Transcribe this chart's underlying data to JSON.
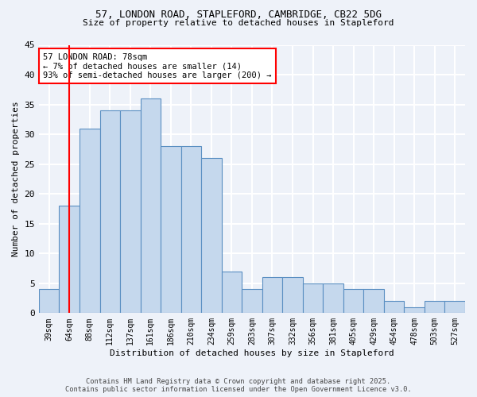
{
  "title_line1": "57, LONDON ROAD, STAPLEFORD, CAMBRIDGE, CB22 5DG",
  "title_line2": "Size of property relative to detached houses in Stapleford",
  "xlabel": "Distribution of detached houses by size in Stapleford",
  "ylabel": "Number of detached properties",
  "bar_labels": [
    "39sqm",
    "64sqm",
    "88sqm",
    "112sqm",
    "137sqm",
    "161sqm",
    "186sqm",
    "210sqm",
    "234sqm",
    "259sqm",
    "283sqm",
    "307sqm",
    "332sqm",
    "356sqm",
    "381sqm",
    "405sqm",
    "429sqm",
    "454sqm",
    "478sqm",
    "503sqm",
    "527sqm"
  ],
  "bar_values": [
    4,
    18,
    31,
    34,
    34,
    36,
    28,
    28,
    26,
    7,
    4,
    6,
    6,
    5,
    5,
    4,
    4,
    2,
    1,
    2,
    2
  ],
  "bar_color": "#c5d8ed",
  "bar_edge_color": "#5a8fc2",
  "annotation_text": "57 LONDON ROAD: 78sqm\n← 7% of detached houses are smaller (14)\n93% of semi-detached houses are larger (200) →",
  "annotation_box_color": "white",
  "annotation_box_edge": "red",
  "vline_x_index": 1,
  "vline_color": "red",
  "ylim": [
    0,
    45
  ],
  "yticks": [
    0,
    5,
    10,
    15,
    20,
    25,
    30,
    35,
    40,
    45
  ],
  "background_color": "#eef2f9",
  "grid_color": "white",
  "footer_line1": "Contains HM Land Registry data © Crown copyright and database right 2025.",
  "footer_line2": "Contains public sector information licensed under the Open Government Licence v3.0."
}
